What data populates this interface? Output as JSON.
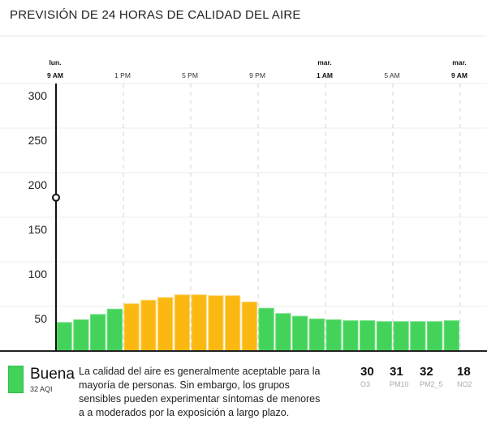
{
  "title": "PREVISIÓN DE 24 HORAS DE CALIDAD DEL AIRE",
  "chart_data": {
    "type": "bar",
    "title": "PREVISIÓN DE 24 HORAS DE CALIDAD DEL AIRE",
    "ylim": [
      0,
      300
    ],
    "yticks": [
      50,
      100,
      150,
      200,
      250,
      300
    ],
    "xticks": [
      {
        "hour": 0,
        "day": "lun.",
        "time": "9 AM",
        "bold": true
      },
      {
        "hour": 4,
        "day": "",
        "time": "1 PM",
        "bold": false
      },
      {
        "hour": 8,
        "day": "",
        "time": "5 PM",
        "bold": false
      },
      {
        "hour": 12,
        "day": "",
        "time": "9 PM",
        "bold": false
      },
      {
        "hour": 16,
        "day": "mar.",
        "time": "1 AM",
        "bold": true
      },
      {
        "hour": 20,
        "day": "",
        "time": "5 AM",
        "bold": false
      },
      {
        "hour": 24,
        "day": "mar.",
        "time": "9 AM",
        "bold": true
      }
    ],
    "values": [
      32,
      35,
      41,
      47,
      53,
      57,
      60,
      63,
      63,
      62,
      62,
      55,
      48,
      42,
      39,
      36,
      35,
      34,
      34,
      33,
      33,
      33,
      33,
      34
    ],
    "marker_value": 172,
    "colors": {
      "good": "#43d35a",
      "moderate": "#fbb811"
    },
    "moderate_threshold": 50,
    "grid": true
  },
  "footer": {
    "level": "Buena",
    "aqi": "32 AQI",
    "description": "La calidad del aire es generalmente aceptable para la mayoría de personas. Sin embargo, los grupos sensibles pueden experimentar síntomas de menores a a moderados por la exposición a largo plazo.",
    "pollutants": [
      {
        "value": "30",
        "name": "O3"
      },
      {
        "value": "31",
        "name": "PM10"
      },
      {
        "value": "32",
        "name": "PM2_5"
      },
      {
        "value": "18",
        "name": "NO2"
      }
    ]
  }
}
